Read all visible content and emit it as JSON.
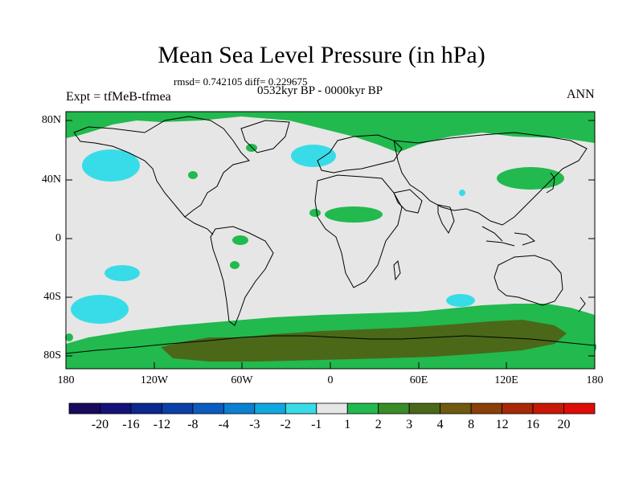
{
  "title": "Mean Sea Level Pressure (in hPa)",
  "stats": "rmsd= 0.742105  diff= 0.229675",
  "period": "0532kyr BP - 0000kyr BP",
  "experiment": "Expt = tfMeB-tfmea",
  "season": "ANN",
  "axes": {
    "lat_labels": [
      "80N",
      "40N",
      "0",
      "40S",
      "80S"
    ],
    "lon_labels": [
      "180",
      "120W",
      "60W",
      "0",
      "60E",
      "120E",
      "180"
    ]
  },
  "colorbar": {
    "labels": [
      "-20",
      "-16",
      "-12",
      "-8",
      "-4",
      "-3",
      "-2",
      "-1",
      "1",
      "2",
      "3",
      "4",
      "8",
      "12",
      "16",
      "20"
    ],
    "colors": [
      "#1a0a5e",
      "#14127a",
      "#0a2890",
      "#0a40a8",
      "#0a5cc0",
      "#0a80d2",
      "#10a8e0",
      "#38dce8",
      "#e6e6e6",
      "#22b94e",
      "#3a8c28",
      "#4a6818",
      "#705a10",
      "#8a4008",
      "#a82808",
      "#c81808",
      "#e00c08"
    ]
  }
}
